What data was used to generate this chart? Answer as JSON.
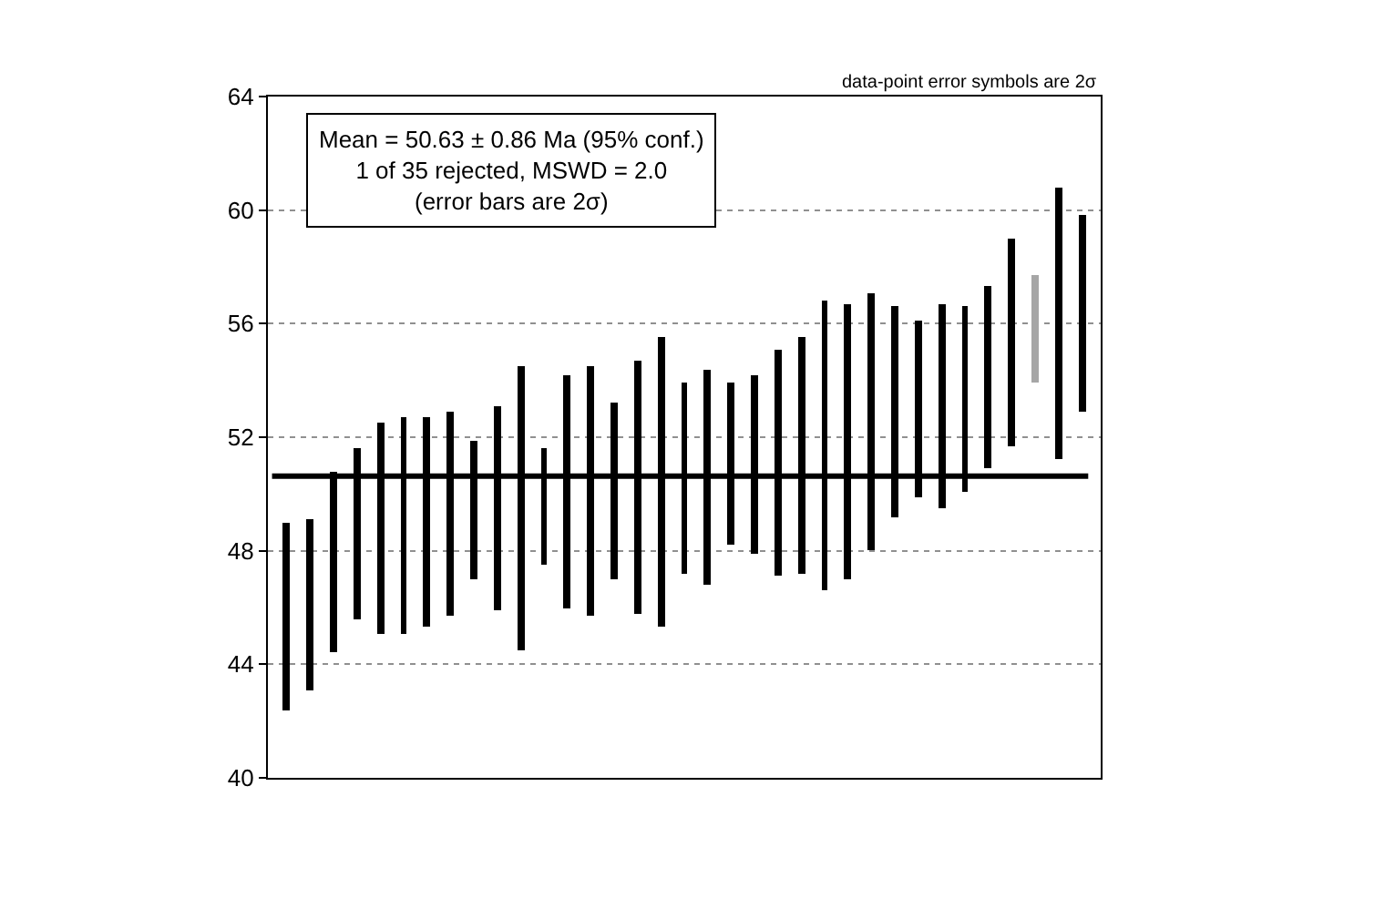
{
  "chart_data": {
    "type": "bar",
    "categories": [
      null,
      null,
      null,
      null,
      null,
      null,
      null,
      null,
      null,
      null,
      null,
      null,
      null,
      null,
      null,
      null,
      null,
      null,
      null,
      null,
      null,
      null,
      null,
      null,
      null,
      null,
      null,
      null,
      null,
      null,
      null,
      null,
      null,
      null,
      null
    ],
    "base": [
      42.4,
      43.1,
      44.4,
      45.6,
      45.1,
      45.1,
      45.3,
      45.7,
      47.0,
      45.9,
      44.5,
      47.5,
      46.0,
      45.7,
      47.0,
      45.8,
      45.3,
      47.2,
      46.8,
      48.2,
      47.9,
      47.1,
      47.2,
      46.6,
      47.0,
      48.0,
      49.2,
      49.9,
      49.5,
      50.1,
      50.9,
      51.7,
      53.9,
      51.2,
      52.9
    ],
    "values": [
      6.6,
      6.0,
      6.4,
      6.0,
      7.4,
      7.6,
      7.4,
      7.2,
      4.9,
      7.2,
      10.0,
      4.1,
      8.2,
      8.8,
      6.2,
      8.9,
      10.2,
      6.7,
      7.6,
      5.7,
      6.3,
      8.0,
      8.3,
      10.2,
      9.7,
      9.1,
      7.4,
      6.2,
      7.2,
      6.5,
      6.4,
      7.3,
      3.8,
      9.6,
      6.9
    ],
    "colors": [
      "#000000",
      "#000000",
      "#000000",
      "#000000",
      "#000000",
      "#000000",
      "#000000",
      "#000000",
      "#000000",
      "#000000",
      "#000000",
      "#000000",
      "#000000",
      "#000000",
      "#000000",
      "#000000",
      "#000000",
      "#000000",
      "#000000",
      "#000000",
      "#000000",
      "#000000",
      "#000000",
      "#000000",
      "#000000",
      "#000000",
      "#000000",
      "#000000",
      "#000000",
      "#000000",
      "#000000",
      "#000000",
      "#a6a6a6",
      "#000000",
      "#000000"
    ],
    "ylim": [
      40,
      64
    ],
    "yticks": [
      40,
      44,
      48,
      52,
      56,
      60,
      64
    ],
    "grid": "y",
    "tick_labels": "y",
    "ref_lines": [
      {
        "axis": "y",
        "value": 50.63,
        "color": "#000000"
      }
    ],
    "annotations": [
      "Mean = 50.63 ± 0.86 Ma (95% conf.)",
      "1 of 35 rejected, MSWD = 2.0",
      "(error bars are 2σ)",
      "data-point error symbols are 2σ"
    ]
  }
}
